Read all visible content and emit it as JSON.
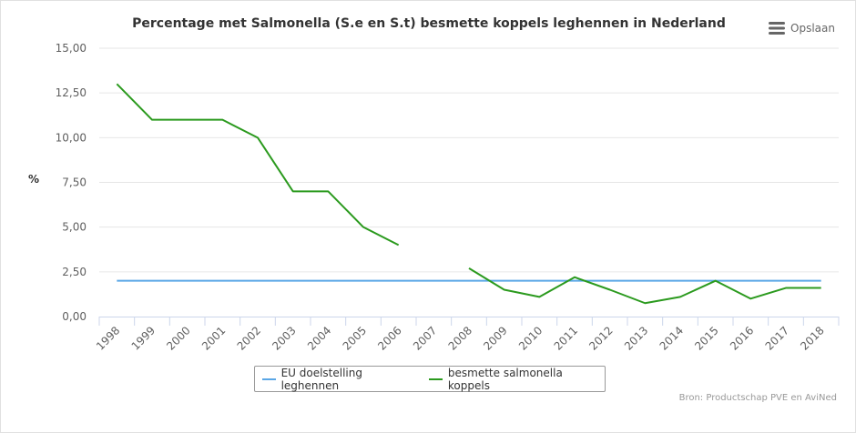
{
  "menu": {
    "label": "Opslaan",
    "icon": "hamburger-icon"
  },
  "credit": "Bron: Productschap PVE en AviNed",
  "chart_data": {
    "type": "line",
    "title": "Percentage met Salmonella (S.e en S.t) besmette koppels leghennen in Nederland",
    "xlabel": "",
    "ylabel": "%",
    "ylim": [
      0,
      15
    ],
    "yticks": [
      "0,00",
      "2,50",
      "5,00",
      "7,50",
      "10,00",
      "12,50",
      "15,00"
    ],
    "ytick_values": [
      0,
      2.5,
      5,
      7.5,
      10,
      12.5,
      15
    ],
    "categories": [
      "1998",
      "1999",
      "2000",
      "2001",
      "2002",
      "2003",
      "2004",
      "2005",
      "2006",
      "2007",
      "2008",
      "2009",
      "2010",
      "2011",
      "2012",
      "2013",
      "2014",
      "2015",
      "2016",
      "2017",
      "2018"
    ],
    "grid": true,
    "legend_position": "bottom",
    "series": [
      {
        "name": "EU doelstelling leghennen",
        "color": "#5ba7e6",
        "values": [
          2,
          2,
          2,
          2,
          2,
          2,
          2,
          2,
          2,
          2,
          2,
          2,
          2,
          2,
          2,
          2,
          2,
          2,
          2,
          2,
          2
        ]
      },
      {
        "name": "besmette salmonella koppels",
        "color": "#2b9a1e",
        "values": [
          13,
          11,
          11,
          11,
          10,
          7,
          7,
          5,
          4,
          null,
          2.7,
          1.5,
          1.1,
          2.2,
          1.5,
          0.75,
          1.1,
          2.0,
          1.0,
          1.6,
          1.6
        ]
      }
    ]
  }
}
